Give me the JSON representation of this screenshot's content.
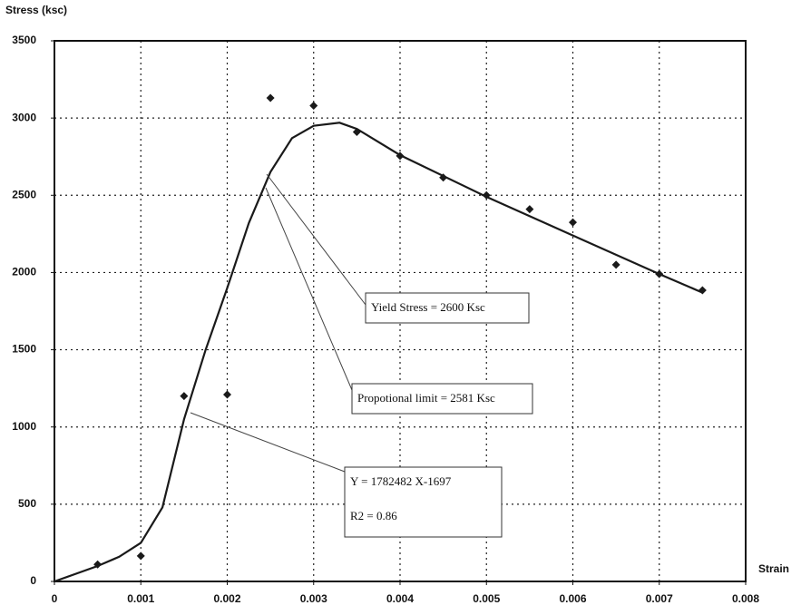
{
  "chart_data": {
    "type": "scatter",
    "ylabel": "Stress (ksc)",
    "xlabel": "Strain",
    "xlim": [
      0,
      0.008
    ],
    "xticks": [
      0,
      0.001,
      0.002,
      0.003,
      0.004,
      0.005,
      0.006,
      0.007,
      0.008
    ],
    "ylim": [
      0,
      3500
    ],
    "yticks": [
      0,
      500,
      1000,
      1500,
      2000,
      2500,
      3000,
      3500
    ],
    "grid": true,
    "series": [
      {
        "style": "markers",
        "marker": "diamond",
        "color": "#1a1a1a",
        "x": [
          0.0005,
          0.001,
          0.0015,
          0.002,
          0.0025,
          0.003,
          0.0035,
          0.004,
          0.0045,
          0.005,
          0.0055,
          0.006,
          0.0065,
          0.007,
          0.0075
        ],
        "values": [
          110,
          165,
          1200,
          1210,
          3130,
          3080,
          2910,
          2755,
          2615,
          2500,
          2410,
          2325,
          2050,
          1990,
          1885
        ]
      },
      {
        "style": "line",
        "color": "#1a1a1a",
        "x": [
          0,
          0.0005,
          0.00075,
          0.001,
          0.00125,
          0.0015,
          0.00175,
          0.002,
          0.00225,
          0.0025,
          0.00275,
          0.003,
          0.0033,
          0.0035,
          0.004,
          0.005,
          0.006,
          0.007,
          0.0075
        ],
        "values": [
          0,
          100,
          160,
          250,
          480,
          1050,
          1500,
          1900,
          2320,
          2650,
          2870,
          2950,
          2970,
          2930,
          2760,
          2490,
          2240,
          1990,
          1870
        ]
      }
    ],
    "annotations": [
      {
        "lines": [
          "Yield Stress = 2600 Ksc"
        ]
      },
      {
        "lines": [
          "Propotional limit = 2581 Ksc"
        ]
      },
      {
        "lines": [
          "Y = 1782482 X-1697",
          "R2 = 0.86"
        ]
      }
    ]
  }
}
